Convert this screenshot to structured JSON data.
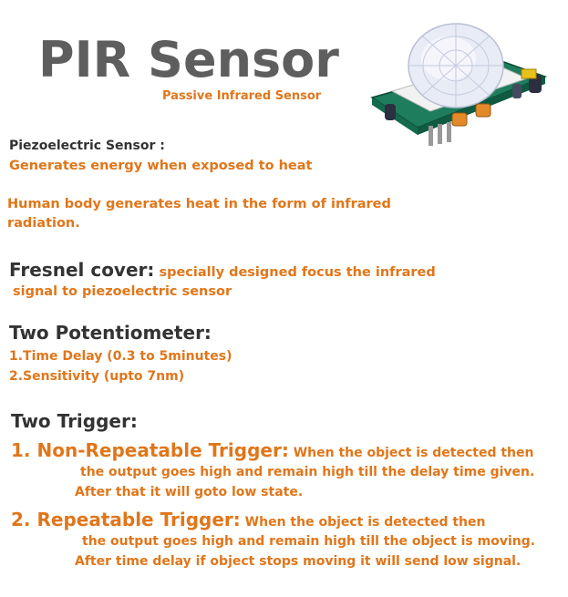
{
  "header": {
    "title": "PIR Sensor",
    "subtitle": "Passive Infrared Sensor"
  },
  "piezo": {
    "heading": "Piezoelectric Sensor :",
    "description": "Generates energy when exposed to heat"
  },
  "human_body": {
    "line1": "Human body generates heat in the form of infrared",
    "line2": "radiation."
  },
  "fresnel": {
    "heading": "Fresnel cover:",
    "line1": " specially designed focus the infrared",
    "line2": "signal to piezoelectric sensor"
  },
  "potentiometer": {
    "heading": "Two Potentiometer:",
    "items": [
      "1.Time Delay (0.3 to 5minutes)",
      "2.Sensitivity (upto 7nm)"
    ]
  },
  "triggers": {
    "heading": "Two Trigger:",
    "items": [
      {
        "title": "1. Non-Repeatable Trigger:",
        "line1": " When the object is detected then",
        "line2": "the output goes high and remain high till the delay time given.",
        "line3": "After that it will goto low state."
      },
      {
        "title": "2. Repeatable Trigger:",
        "line1": " When the object is detected then",
        "line2": "the output goes high and remain high till the object is moving.",
        "line3": "After time delay if object stops moving it will send low signal."
      }
    ]
  },
  "colors": {
    "accent": "#e0761a",
    "heading": "#333333",
    "title": "#5e5e5e"
  },
  "image": {
    "icon": "pir-sensor-module-photo"
  }
}
